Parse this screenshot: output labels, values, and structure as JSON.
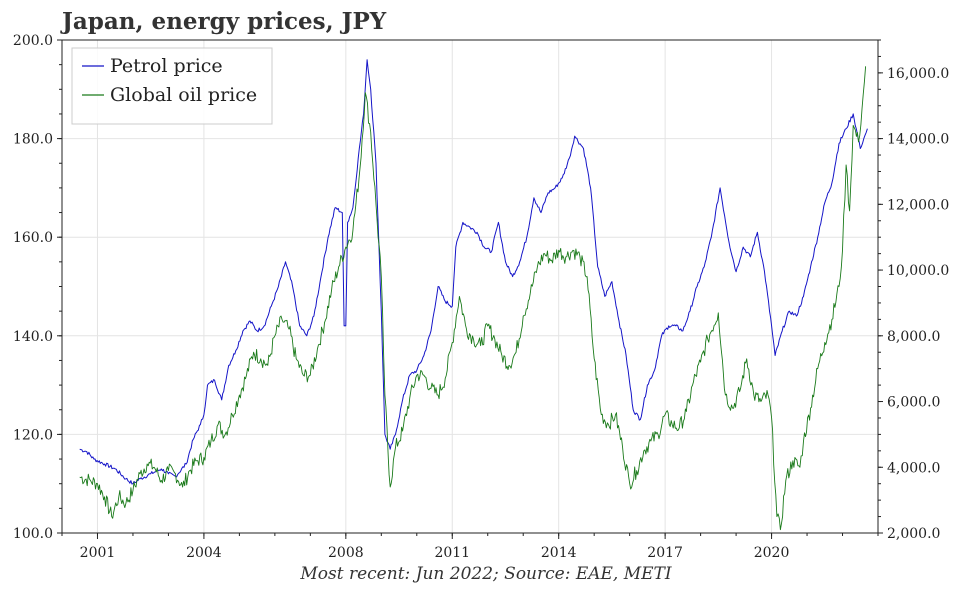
{
  "chart_data": {
    "type": "line",
    "title": "Japan, energy prices, JPY",
    "caption": "Most recent: Jun 2022; Source: EAE, METI",
    "x_ticks": [
      "2001",
      "2004",
      "2008",
      "2011",
      "2014",
      "2017",
      "2020"
    ],
    "xlim": [
      2000.0,
      2023.0
    ],
    "y_left": {
      "ylim": [
        100.0,
        200.0
      ],
      "ticks": [
        "100.0",
        "120.0",
        "140.0",
        "160.0",
        "180.0",
        "200.0"
      ]
    },
    "y_right": {
      "ylim": [
        2000.0,
        17000.0
      ],
      "ticks": [
        "2,000.0",
        "4,000.0",
        "6,000.0",
        "8,000.0",
        "10,000.0",
        "12,000.0",
        "14,000.0",
        "16,000.0"
      ]
    },
    "grid": true,
    "legend_position": "top-left",
    "series": [
      {
        "name": "Petrol price",
        "axis": "left",
        "color": "#1515c8",
        "points": [
          [
            2000.5,
            117
          ],
          [
            2000.7,
            116.5
          ],
          [
            2000.9,
            115
          ],
          [
            2001.2,
            114
          ],
          [
            2001.5,
            113
          ],
          [
            2001.8,
            111
          ],
          [
            2002.0,
            110
          ],
          [
            2002.2,
            111
          ],
          [
            2002.5,
            112
          ],
          [
            2002.8,
            113
          ],
          [
            2003.0,
            112
          ],
          [
            2003.2,
            111.5
          ],
          [
            2003.5,
            114
          ],
          [
            2003.7,
            119
          ],
          [
            2003.9,
            122
          ],
          [
            2004.0,
            124
          ],
          [
            2004.1,
            130
          ],
          [
            2004.3,
            131
          ],
          [
            2004.5,
            127
          ],
          [
            2004.7,
            134
          ],
          [
            2004.9,
            137
          ],
          [
            2005.1,
            141
          ],
          [
            2005.3,
            143
          ],
          [
            2005.5,
            141
          ],
          [
            2005.7,
            142
          ],
          [
            2005.9,
            146
          ],
          [
            2006.1,
            150
          ],
          [
            2006.3,
            155
          ],
          [
            2006.5,
            150
          ],
          [
            2006.7,
            142
          ],
          [
            2006.9,
            140
          ],
          [
            2007.1,
            144
          ],
          [
            2007.3,
            152
          ],
          [
            2007.5,
            160
          ],
          [
            2007.7,
            166
          ],
          [
            2007.9,
            165
          ],
          [
            2007.95,
            142
          ],
          [
            2008.0,
            142
          ],
          [
            2008.05,
            163
          ],
          [
            2008.2,
            166
          ],
          [
            2008.35,
            176
          ],
          [
            2008.5,
            185
          ],
          [
            2008.6,
            196
          ],
          [
            2008.7,
            190
          ],
          [
            2008.85,
            175
          ],
          [
            2009.0,
            145
          ],
          [
            2009.1,
            120
          ],
          [
            2009.25,
            117
          ],
          [
            2009.4,
            120
          ],
          [
            2009.6,
            127
          ],
          [
            2009.8,
            132
          ],
          [
            2010.0,
            133
          ],
          [
            2010.2,
            136
          ],
          [
            2010.4,
            141
          ],
          [
            2010.6,
            150
          ],
          [
            2010.8,
            147
          ],
          [
            2011.0,
            146
          ],
          [
            2011.1,
            158
          ],
          [
            2011.3,
            163
          ],
          [
            2011.5,
            162
          ],
          [
            2011.7,
            161
          ],
          [
            2011.9,
            158
          ],
          [
            2012.1,
            157
          ],
          [
            2012.3,
            163
          ],
          [
            2012.5,
            155
          ],
          [
            2012.7,
            152
          ],
          [
            2012.9,
            155
          ],
          [
            2013.1,
            160
          ],
          [
            2013.3,
            168
          ],
          [
            2013.5,
            165
          ],
          [
            2013.7,
            169
          ],
          [
            2013.9,
            170
          ],
          [
            2014.1,
            172
          ],
          [
            2014.3,
            176
          ],
          [
            2014.45,
            180.5
          ],
          [
            2014.7,
            178
          ],
          [
            2014.9,
            170
          ],
          [
            2015.1,
            154
          ],
          [
            2015.3,
            148
          ],
          [
            2015.5,
            151
          ],
          [
            2015.7,
            143
          ],
          [
            2015.9,
            136
          ],
          [
            2016.1,
            125
          ],
          [
            2016.3,
            123
          ],
          [
            2016.5,
            130
          ],
          [
            2016.7,
            133
          ],
          [
            2016.9,
            140
          ],
          [
            2017.1,
            142
          ],
          [
            2017.3,
            142
          ],
          [
            2017.5,
            141
          ],
          [
            2017.7,
            145
          ],
          [
            2017.9,
            150
          ],
          [
            2018.1,
            154
          ],
          [
            2018.3,
            160
          ],
          [
            2018.55,
            170
          ],
          [
            2018.8,
            159
          ],
          [
            2019.0,
            153
          ],
          [
            2019.2,
            158
          ],
          [
            2019.4,
            156
          ],
          [
            2019.6,
            161
          ],
          [
            2019.8,
            153
          ],
          [
            2020.0,
            142
          ],
          [
            2020.1,
            136
          ],
          [
            2020.3,
            141
          ],
          [
            2020.5,
            145
          ],
          [
            2020.7,
            144
          ],
          [
            2020.9,
            148
          ],
          [
            2021.1,
            154
          ],
          [
            2021.3,
            160
          ],
          [
            2021.5,
            167
          ],
          [
            2021.7,
            171
          ],
          [
            2021.9,
            179
          ],
          [
            2022.1,
            182
          ],
          [
            2022.3,
            185
          ],
          [
            2022.5,
            178
          ],
          [
            2022.6,
            180
          ],
          [
            2022.7,
            182
          ]
        ]
      },
      {
        "name": "Global oil price",
        "axis": "right",
        "color": "#1a7a1a",
        "points": [
          [
            2000.5,
            3700
          ],
          [
            2000.8,
            3600
          ],
          [
            2001.0,
            3500
          ],
          [
            2001.2,
            3100
          ],
          [
            2001.4,
            2500
          ],
          [
            2001.6,
            3100
          ],
          [
            2001.8,
            2900
          ],
          [
            2002.0,
            3300
          ],
          [
            2002.2,
            3800
          ],
          [
            2002.4,
            4100
          ],
          [
            2002.6,
            4000
          ],
          [
            2002.8,
            3600
          ],
          [
            2003.0,
            3900
          ],
          [
            2003.2,
            3800
          ],
          [
            2003.4,
            3400
          ],
          [
            2003.6,
            3900
          ],
          [
            2003.8,
            4200
          ],
          [
            2004.0,
            4300
          ],
          [
            2004.2,
            4800
          ],
          [
            2004.4,
            5300
          ],
          [
            2004.6,
            5000
          ],
          [
            2004.8,
            5600
          ],
          [
            2005.0,
            6200
          ],
          [
            2005.2,
            6800
          ],
          [
            2005.4,
            7500
          ],
          [
            2005.6,
            7300
          ],
          [
            2005.8,
            7100
          ],
          [
            2006.0,
            8000
          ],
          [
            2006.2,
            8500
          ],
          [
            2006.4,
            8200
          ],
          [
            2006.6,
            7300
          ],
          [
            2006.8,
            6800
          ],
          [
            2007.0,
            6800
          ],
          [
            2007.2,
            7600
          ],
          [
            2007.4,
            8400
          ],
          [
            2007.6,
            9400
          ],
          [
            2007.8,
            10100
          ],
          [
            2008.0,
            10700
          ],
          [
            2008.2,
            11200
          ],
          [
            2008.4,
            13100
          ],
          [
            2008.55,
            15400
          ],
          [
            2008.7,
            14200
          ],
          [
            2008.85,
            12000
          ],
          [
            2009.0,
            9800
          ],
          [
            2009.1,
            6200
          ],
          [
            2009.25,
            3400
          ],
          [
            2009.4,
            4600
          ],
          [
            2009.6,
            5100
          ],
          [
            2009.8,
            6100
          ],
          [
            2010.0,
            6800
          ],
          [
            2010.2,
            6800
          ],
          [
            2010.4,
            6400
          ],
          [
            2010.6,
            6200
          ],
          [
            2010.8,
            6700
          ],
          [
            2011.0,
            7800
          ],
          [
            2011.2,
            9200
          ],
          [
            2011.4,
            8200
          ],
          [
            2011.6,
            7900
          ],
          [
            2011.8,
            7700
          ],
          [
            2012.0,
            8300
          ],
          [
            2012.2,
            7900
          ],
          [
            2012.4,
            7400
          ],
          [
            2012.6,
            7100
          ],
          [
            2012.8,
            7500
          ],
          [
            2013.0,
            8600
          ],
          [
            2013.2,
            9300
          ],
          [
            2013.4,
            10100
          ],
          [
            2013.6,
            10500
          ],
          [
            2013.8,
            10300
          ],
          [
            2014.0,
            10600
          ],
          [
            2014.2,
            10400
          ],
          [
            2014.4,
            10600
          ],
          [
            2014.6,
            10400
          ],
          [
            2014.8,
            9800
          ],
          [
            2015.0,
            7300
          ],
          [
            2015.2,
            5600
          ],
          [
            2015.4,
            5300
          ],
          [
            2015.6,
            5600
          ],
          [
            2015.8,
            4600
          ],
          [
            2016.0,
            3500
          ],
          [
            2016.2,
            3900
          ],
          [
            2016.4,
            4500
          ],
          [
            2016.6,
            4800
          ],
          [
            2016.8,
            5000
          ],
          [
            2017.0,
            5600
          ],
          [
            2017.2,
            5300
          ],
          [
            2017.4,
            5200
          ],
          [
            2017.6,
            5700
          ],
          [
            2017.8,
            6600
          ],
          [
            2018.0,
            7200
          ],
          [
            2018.2,
            7900
          ],
          [
            2018.5,
            8700
          ],
          [
            2018.7,
            6200
          ],
          [
            2018.9,
            5800
          ],
          [
            2019.1,
            6300
          ],
          [
            2019.3,
            7300
          ],
          [
            2019.5,
            6200
          ],
          [
            2019.7,
            6000
          ],
          [
            2019.9,
            6200
          ],
          [
            2020.0,
            5500
          ],
          [
            2020.15,
            2500
          ],
          [
            2020.25,
            2100
          ],
          [
            2020.4,
            3600
          ],
          [
            2020.6,
            4200
          ],
          [
            2020.8,
            4000
          ],
          [
            2020.9,
            4800
          ],
          [
            2021.1,
            5800
          ],
          [
            2021.3,
            7000
          ],
          [
            2021.5,
            7800
          ],
          [
            2021.7,
            8500
          ],
          [
            2021.9,
            9500
          ],
          [
            2022.0,
            10600
          ],
          [
            2022.1,
            13200
          ],
          [
            2022.2,
            11800
          ],
          [
            2022.3,
            14400
          ],
          [
            2022.45,
            13900
          ],
          [
            2022.55,
            14900
          ],
          [
            2022.65,
            16200
          ]
        ]
      }
    ]
  }
}
